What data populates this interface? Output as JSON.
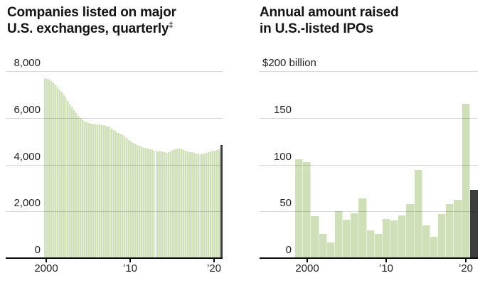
{
  "palette": {
    "bar_green": "#cfe0b8",
    "bar_stripe": "rgba(255,255,255,0.5)",
    "bar_dark": "#3a3c3d",
    "gridline": "rgba(0,0,0,0.16)",
    "axis": "#0a0a0a",
    "title_color": "#141414",
    "label_color": "#222222"
  },
  "chart_data": [
    {
      "id": "companies-listed",
      "type": "bar",
      "title_line1": "Companies listed on major",
      "title_line2": "U.S. exchanges, quarterly",
      "footnote_mark": "‡",
      "frequency": "quarterly",
      "start_year": 2000,
      "ylim": [
        0,
        8000
      ],
      "grid_values": [
        8000,
        6000,
        4000,
        2000
      ],
      "y_labels": [
        {
          "text": "8,000",
          "value": 8000
        },
        {
          "text": "6,000",
          "value": 6000
        },
        {
          "text": "4,000",
          "value": 4000
        },
        {
          "text": "2,000",
          "value": 2000
        },
        {
          "text": "0",
          "value": 0
        }
      ],
      "x_ticks": [
        {
          "label": "2000",
          "year": 2000
        },
        {
          "label": "’10",
          "year": 2010
        },
        {
          "label": "’20",
          "year": 2020
        }
      ],
      "values": [
        7700,
        7670,
        7630,
        7560,
        7480,
        7390,
        7290,
        7190,
        7080,
        6960,
        6840,
        6710,
        6580,
        6450,
        6330,
        6210,
        6090,
        5990,
        5910,
        5850,
        5800,
        5770,
        5750,
        5740,
        5730,
        5720,
        5710,
        5700,
        5690,
        5670,
        5640,
        5590,
        5530,
        5470,
        5410,
        5360,
        5310,
        5260,
        5200,
        5130,
        5060,
        4990,
        4930,
        4880,
        4840,
        4800,
        4770,
        4730,
        4700,
        4670,
        4640,
        4620,
        4600,
        4585,
        4575,
        4565,
        4550,
        4520,
        4495,
        4520,
        4565,
        4615,
        4660,
        4680,
        4670,
        4650,
        4625,
        4595,
        4565,
        4540,
        4520,
        4500,
        4480,
        4462,
        4450,
        4458,
        4478,
        4505,
        4535,
        4560,
        4580,
        4600,
        4620,
        4640
      ],
      "latest": {
        "value": 4850
      }
    },
    {
      "id": "ipo-amount-raised",
      "type": "bar",
      "title_line1": "Annual amount raised",
      "title_line2": "in U.S.-listed IPOs",
      "footnote_mark": "",
      "frequency": "annual",
      "start_year": 1999,
      "unit_label": "$200 billion",
      "ylim": [
        0,
        200
      ],
      "grid_values": [
        200,
        150,
        100,
        50
      ],
      "y_labels": [
        {
          "text": "150",
          "value": 150
        },
        {
          "text": "100",
          "value": 100
        },
        {
          "text": "50",
          "value": 50
        },
        {
          "text": "0",
          "value": 0
        }
      ],
      "x_ticks": [
        {
          "label": "2000",
          "year": 2000
        },
        {
          "label": "’10",
          "year": 2010
        },
        {
          "label": "’20",
          "year": 2020
        }
      ],
      "years": [
        1999,
        2000,
        2001,
        2002,
        2003,
        2004,
        2005,
        2006,
        2007,
        2008,
        2009,
        2010,
        2011,
        2012,
        2013,
        2014,
        2015,
        2016,
        2017,
        2018,
        2019,
        2020
      ],
      "values": [
        106,
        103,
        45,
        26,
        17,
        50,
        41,
        48,
        64,
        30,
        26,
        42,
        40,
        46,
        58,
        94,
        35,
        23,
        47,
        58,
        62,
        165
      ],
      "latest": {
        "year": 2021,
        "value": 73
      }
    }
  ]
}
